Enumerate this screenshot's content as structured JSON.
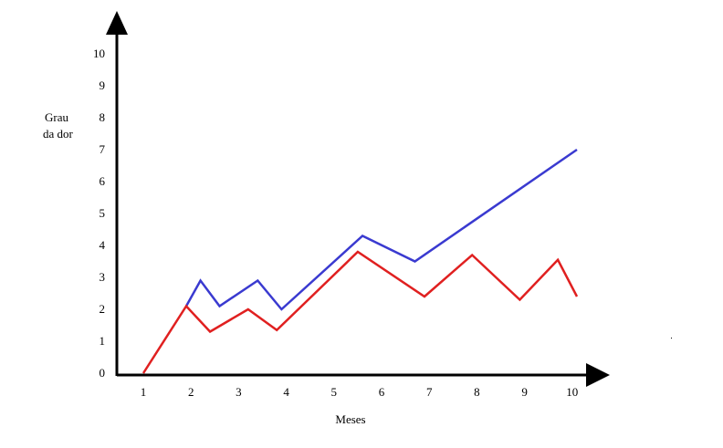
{
  "chart_data": {
    "type": "line",
    "title": "",
    "xlabel": "Meses",
    "ylabel_lines": [
      "Grau",
      "da dor"
    ],
    "x_ticks": [
      "1",
      "2",
      "3",
      "4",
      "5",
      "6",
      "7",
      "8",
      "9",
      "10"
    ],
    "y_ticks": [
      "0",
      "1",
      "2",
      "3",
      "4",
      "5",
      "6",
      "7",
      "8",
      "9",
      "10"
    ],
    "xlim": [
      1,
      10
    ],
    "ylim": [
      0,
      10
    ],
    "grid": false,
    "legend": "none",
    "series": [
      {
        "color": "#3a3ad0",
        "points": [
          [
            1.9,
            2.1
          ],
          [
            2.2,
            2.9
          ],
          [
            2.6,
            2.1
          ],
          [
            3.4,
            2.9
          ],
          [
            3.9,
            2.0
          ],
          [
            5.6,
            4.3
          ],
          [
            6.7,
            3.5
          ],
          [
            10.1,
            7.0
          ]
        ]
      },
      {
        "color": "#e02020",
        "points": [
          [
            1.0,
            0.0
          ],
          [
            1.9,
            2.1
          ],
          [
            2.4,
            1.3
          ],
          [
            3.2,
            2.0
          ],
          [
            3.8,
            1.35
          ],
          [
            5.5,
            3.8
          ],
          [
            6.9,
            2.4
          ],
          [
            7.9,
            3.7
          ],
          [
            8.9,
            2.3
          ],
          [
            9.7,
            3.55
          ],
          [
            10.1,
            2.4
          ]
        ]
      }
    ]
  }
}
